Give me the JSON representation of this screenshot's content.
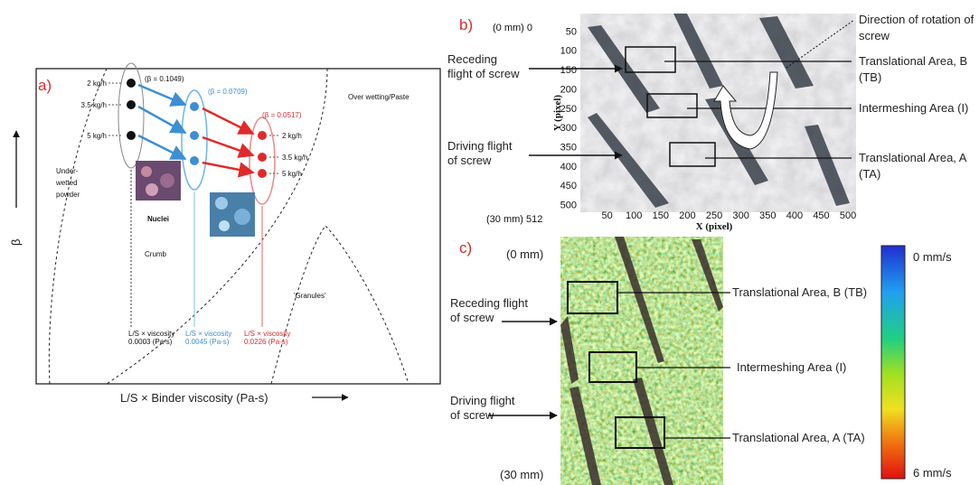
{
  "panel_a": {
    "label": "a)",
    "feed_rates_left": [
      "2 kg/h",
      "3.5 kg/h",
      "5 kg/h"
    ],
    "feed_rates_right": [
      "2 kg/h",
      "3.5 kg/h",
      "5 kg/h"
    ],
    "beta_labels": [
      "(β = 0.1049)",
      "(β = 0.0709)",
      "(β = 0.0517)"
    ],
    "over_wetting": "Over wetting/Paste",
    "under_wetted": [
      "Under-",
      "wetted",
      "powder"
    ],
    "nuclei": "Nuclei",
    "crumb": "Crumb",
    "granules": "'Granules'",
    "viscosity_labels": [
      [
        "L/S × viscosity",
        "0.0003 (Pa-s)"
      ],
      [
        "L/S × viscosity",
        "0.0045 (Pa-s)"
      ],
      [
        "L/S × viscosity",
        "0.0226 (Pa-s)"
      ]
    ],
    "y_axis": "β",
    "x_axis": "L/S × Binder viscosity (Pa-s)"
  },
  "panel_b": {
    "label": "b)",
    "top_label": "(0 mm) 0",
    "bottom_label": "(30 mm) 512",
    "receding": [
      "Receding",
      "flight of screw"
    ],
    "driving": [
      "Driving flight",
      "of screw"
    ],
    "rotation": [
      "Direction of rotation of",
      "screw"
    ],
    "area_tb": [
      "Translational Area, B",
      "(TB)"
    ],
    "area_i": "Intermeshing Area (I)",
    "area_ta": [
      "Translational Area, A",
      "(TA)"
    ],
    "y_axis": "Y (pixel)",
    "x_axis": "X (pixel)",
    "xticks": [
      50,
      100,
      150,
      200,
      250,
      300,
      350,
      400,
      450,
      500
    ],
    "yticks": [
      50,
      100,
      150,
      200,
      250,
      300,
      350,
      400,
      450,
      500
    ]
  },
  "panel_c": {
    "label": "c)",
    "top_label": "(0 mm)",
    "bottom_label": "(30 mm)",
    "receding": [
      "Receding flight",
      "of screw"
    ],
    "driving": [
      "Driving flight",
      "of screw"
    ],
    "area_tb": "Translational Area, B (TB)",
    "area_i": "Intermeshing Area (I)",
    "area_ta": "Translational Area, A (TA)",
    "scale_min": "0 mm/s",
    "scale_max": "6 mm/s"
  }
}
